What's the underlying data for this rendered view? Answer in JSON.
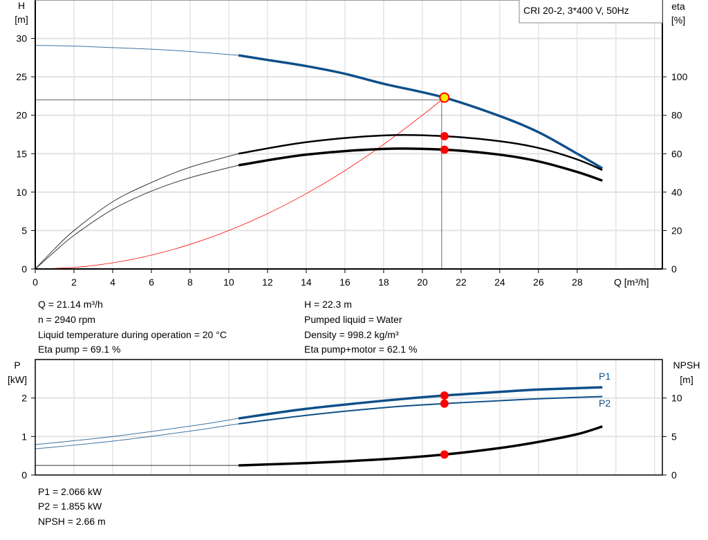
{
  "colors": {
    "head": "#0e4f8a",
    "power": "#0e4f8a",
    "efficiency": "#000000",
    "npsh": "#000000",
    "system": "#ff0000",
    "duty_point": "#ff0000",
    "duty_point_head": "#ffee00",
    "grid": "#d6d6d6"
  },
  "chart_data": [
    {
      "type": "line",
      "title": "CRI 20-2, 3*400 V, 50Hz",
      "xlabel": "Q [m³/h]",
      "ylabel_left": [
        "H",
        "[m]"
      ],
      "ylabel_right": [
        "eta",
        "[%]"
      ],
      "xlim": [
        0,
        32.4
      ],
      "ylim_left": [
        0,
        35
      ],
      "ylim_right": [
        0,
        140
      ],
      "x_ticks": [
        0,
        2,
        4,
        6,
        8,
        10,
        12,
        14,
        16,
        18,
        20,
        22,
        24,
        26,
        28
      ],
      "y_ticks_left": [
        0,
        5,
        10,
        15,
        20,
        25,
        30
      ],
      "y_ticks_right": [
        0,
        20,
        40,
        60,
        80,
        100
      ],
      "grid": true,
      "series": [
        {
          "key": "head",
          "axis": "left",
          "x": [
            0,
            2,
            4,
            6,
            8,
            10.5,
            12,
            14,
            16,
            18,
            21.14,
            24,
            26,
            28,
            29.3
          ],
          "y": [
            29.1,
            29.0,
            28.8,
            28.6,
            28.3,
            27.8,
            27.2,
            26.4,
            25.4,
            24.1,
            22.3,
            19.9,
            17.8,
            15.0,
            13.1
          ]
        },
        {
          "key": "eta_pump",
          "axis": "right",
          "x": [
            0,
            1,
            2,
            4,
            6,
            8,
            10.5,
            14,
            18,
            21.14,
            24,
            26,
            28,
            29.3
          ],
          "y": [
            0,
            10.5,
            20,
            35,
            45,
            53,
            60,
            66,
            69.5,
            69.1,
            66.5,
            63,
            57,
            51.5
          ]
        },
        {
          "key": "eta_pump_motor",
          "axis": "right",
          "x": [
            0,
            1,
            2,
            4,
            6,
            8,
            10.5,
            14,
            18,
            21.14,
            24,
            26,
            28,
            29.3
          ],
          "y": [
            0,
            9,
            17.5,
            31,
            40.5,
            47.5,
            54,
            59.5,
            62.5,
            62.1,
            59.5,
            56,
            50.5,
            46
          ]
        },
        {
          "key": "system",
          "axis": "left",
          "x": [
            0,
            2,
            4,
            6,
            8,
            10,
            12,
            14,
            16,
            18,
            20,
            21.14
          ],
          "y": [
            0,
            0.2,
            0.8,
            1.8,
            3.2,
            5.0,
            7.2,
            9.8,
            12.8,
            16.2,
            20.0,
            22.3
          ]
        }
      ],
      "duty_point": {
        "Q": 21.14,
        "H": 22.3,
        "eta_pump": 69.1,
        "eta_pump_motor": 62.1
      }
    },
    {
      "type": "line",
      "ylabel_left": [
        "P",
        "[kW]"
      ],
      "ylabel_right": [
        "NPSH",
        "[m]"
      ],
      "xlim": [
        0,
        32.4
      ],
      "ylim_left": [
        0,
        3
      ],
      "ylim_right": [
        0,
        15
      ],
      "y_ticks_left": [
        0,
        1,
        2
      ],
      "y_ticks_right": [
        0,
        5,
        10
      ],
      "grid": true,
      "series": [
        {
          "key": "p1",
          "name": "P1",
          "axis": "left",
          "x": [
            0,
            4,
            8,
            10.5,
            14,
            18,
            21.14,
            24,
            26,
            29.3
          ],
          "y": [
            0.79,
            1.0,
            1.27,
            1.47,
            1.72,
            1.93,
            2.066,
            2.16,
            2.22,
            2.28
          ]
        },
        {
          "key": "p2",
          "name": "P2",
          "axis": "left",
          "x": [
            0,
            4,
            8,
            10.5,
            14,
            18,
            21.14,
            24,
            26,
            29.3
          ],
          "y": [
            0.68,
            0.88,
            1.14,
            1.33,
            1.55,
            1.75,
            1.855,
            1.93,
            1.98,
            2.04
          ]
        },
        {
          "key": "npsh",
          "axis": "right",
          "x": [
            0,
            10.5,
            14,
            18,
            21.14,
            24,
            26,
            28,
            29.3
          ],
          "y": [
            1.25,
            1.25,
            1.55,
            2.05,
            2.66,
            3.5,
            4.3,
            5.3,
            6.3
          ]
        }
      ],
      "duty_point": {
        "Q": 21.14,
        "P1": 2.066,
        "P2": 1.855,
        "NPSH": 2.66
      }
    }
  ],
  "info_top_left": [
    "Q = 21.14 m³/h",
    "n = 2940 rpm",
    "Liquid temperature during operation = 20 °C",
    "Eta pump = 69.1 %"
  ],
  "info_top_right": [
    "H = 22.3 m",
    "Pumped liquid = Water",
    "Density = 998.2 kg/m³",
    "Eta pump+motor = 62.1 %"
  ],
  "info_bottom": [
    "P1 = 2.066 kW",
    "P2 = 1.855 kW",
    "NPSH = 2.66 m"
  ]
}
